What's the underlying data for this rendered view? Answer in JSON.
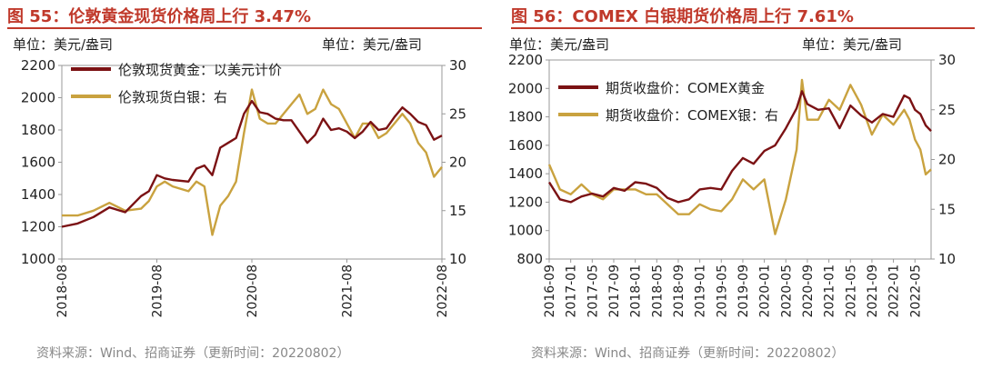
{
  "charts": [
    {
      "title": "图 55：伦敦黄金现货价格周上行 3.47%",
      "unit_left": "单位：美元/盎司",
      "unit_right": "单位：美元/盎司",
      "source": "资料来源：Wind、招商证券（更新时间：20220802）",
      "colors": {
        "gold": "#7b1214",
        "silver": "#c9a23f",
        "accent": "#c0392b"
      }
    },
    {
      "title": "图 56：COMEX 白银期货价格周上行 7.61%",
      "unit_left": "单位：美元/盎司",
      "unit_right": "单位：美元/盎司",
      "source": "资料来源：Wind、招商证券（更新时间：20220802）",
      "colors": {
        "gold": "#7b1214",
        "silver": "#c9a23f",
        "accent": "#c0392b"
      }
    }
  ],
  "chart_data": [
    {
      "type": "line",
      "x_ticks": [
        "2018-08",
        "2019-08",
        "2020-08",
        "2021-08",
        "2022-08"
      ],
      "y_left": {
        "min": 1000,
        "max": 2200,
        "ticks": [
          "1000",
          "1200",
          "1400",
          "1600",
          "1800",
          "2000",
          "2200"
        ]
      },
      "y_right": {
        "min": 10,
        "max": 30,
        "ticks": [
          "10",
          "15",
          "20",
          "25",
          "30"
        ]
      },
      "legend_placement": "top-left",
      "series": [
        {
          "name": "伦敦现货黄金：以美元计价",
          "axis": "left",
          "x": [
            "2018-08",
            "2018-10",
            "2018-12",
            "2019-02",
            "2019-04",
            "2019-06",
            "2019-07",
            "2019-08",
            "2019-09",
            "2019-10",
            "2019-12",
            "2020-01",
            "2020-02",
            "2020-03",
            "2020-04",
            "2020-05",
            "2020-06",
            "2020-07",
            "2020-08",
            "2020-09",
            "2020-10",
            "2020-11",
            "2020-12",
            "2021-01",
            "2021-03",
            "2021-04",
            "2021-05",
            "2021-06",
            "2021-07",
            "2021-08",
            "2021-09",
            "2021-10",
            "2021-11",
            "2021-12",
            "2022-01",
            "2022-02",
            "2022-03",
            "2022-04",
            "2022-05",
            "2022-06",
            "2022-07",
            "2022-08"
          ],
          "values": [
            1200,
            1220,
            1260,
            1320,
            1290,
            1390,
            1420,
            1520,
            1500,
            1490,
            1480,
            1560,
            1580,
            1520,
            1690,
            1720,
            1750,
            1900,
            1980,
            1910,
            1900,
            1870,
            1860,
            1860,
            1720,
            1770,
            1870,
            1800,
            1810,
            1790,
            1750,
            1790,
            1850,
            1800,
            1810,
            1880,
            1940,
            1900,
            1850,
            1830,
            1740,
            1765
          ]
        },
        {
          "name": "伦敦现货白银：右",
          "axis": "right",
          "x": [
            "2018-08",
            "2018-10",
            "2018-12",
            "2019-02",
            "2019-04",
            "2019-06",
            "2019-07",
            "2019-08",
            "2019-09",
            "2019-10",
            "2019-12",
            "2020-01",
            "2020-02",
            "2020-03",
            "2020-04",
            "2020-05",
            "2020-06",
            "2020-07",
            "2020-08",
            "2020-09",
            "2020-10",
            "2020-11",
            "2020-12",
            "2021-01",
            "2021-02",
            "2021-03",
            "2021-04",
            "2021-05",
            "2021-06",
            "2021-07",
            "2021-08",
            "2021-09",
            "2021-10",
            "2021-11",
            "2021-12",
            "2022-01",
            "2022-02",
            "2022-03",
            "2022-04",
            "2022-05",
            "2022-06",
            "2022-07",
            "2022-08"
          ],
          "values": [
            14.5,
            14.5,
            15,
            15.8,
            15,
            15.2,
            16,
            17.5,
            18,
            17.5,
            17,
            18,
            17.5,
            12.5,
            15.5,
            16.5,
            18,
            23,
            27.5,
            24.5,
            24,
            24,
            25,
            26,
            27,
            25,
            25.5,
            27.5,
            26,
            25.5,
            24,
            22.5,
            24,
            24,
            22.5,
            23,
            24,
            25,
            24,
            22,
            21,
            18.5,
            19.5
          ]
        }
      ]
    },
    {
      "type": "line",
      "x_ticks": [
        "2016-09",
        "2017-01",
        "2017-05",
        "2017-09",
        "2018-01",
        "2018-05",
        "2018-09",
        "2019-01",
        "2019-05",
        "2019-09",
        "2020-01",
        "2020-05",
        "2020-09",
        "2021-01",
        "2021-05",
        "2021-09",
        "2022-01",
        "2022-05"
      ],
      "y_left": {
        "min": 800,
        "max": 2200,
        "ticks": [
          "800",
          "1000",
          "1200",
          "1400",
          "1600",
          "1800",
          "2000",
          "2200"
        ]
      },
      "y_right": {
        "min": 10,
        "max": 30,
        "ticks": [
          "10",
          "15",
          "20",
          "25",
          "30"
        ]
      },
      "legend_placement": "top-left",
      "series": [
        {
          "name": "期货收盘价：COMEX黄金",
          "axis": "left",
          "x": [
            "2016-09",
            "2016-11",
            "2017-01",
            "2017-03",
            "2017-05",
            "2017-07",
            "2017-09",
            "2017-11",
            "2018-01",
            "2018-03",
            "2018-05",
            "2018-07",
            "2018-09",
            "2018-11",
            "2019-01",
            "2019-03",
            "2019-05",
            "2019-07",
            "2019-09",
            "2019-11",
            "2020-01",
            "2020-03",
            "2020-05",
            "2020-07",
            "2020-08",
            "2020-09",
            "2020-11",
            "2021-01",
            "2021-03",
            "2021-05",
            "2021-07",
            "2021-09",
            "2021-11",
            "2022-01",
            "2022-03",
            "2022-04",
            "2022-05",
            "2022-06",
            "2022-07",
            "2022-08"
          ],
          "values": [
            1340,
            1220,
            1200,
            1240,
            1260,
            1240,
            1300,
            1280,
            1340,
            1330,
            1300,
            1230,
            1200,
            1220,
            1290,
            1300,
            1290,
            1420,
            1510,
            1470,
            1560,
            1600,
            1720,
            1860,
            1980,
            1890,
            1850,
            1860,
            1720,
            1880,
            1810,
            1760,
            1820,
            1800,
            1950,
            1930,
            1850,
            1820,
            1740,
            1700
          ]
        },
        {
          "name": "期货收盘价：COMEX银：右",
          "axis": "right",
          "x": [
            "2016-09",
            "2016-11",
            "2017-01",
            "2017-03",
            "2017-05",
            "2017-07",
            "2017-09",
            "2017-11",
            "2018-01",
            "2018-03",
            "2018-05",
            "2018-07",
            "2018-09",
            "2018-11",
            "2019-01",
            "2019-03",
            "2019-05",
            "2019-07",
            "2019-09",
            "2019-11",
            "2020-01",
            "2020-03",
            "2020-05",
            "2020-07",
            "2020-08",
            "2020-09",
            "2020-11",
            "2021-01",
            "2021-03",
            "2021-05",
            "2021-07",
            "2021-09",
            "2021-11",
            "2022-01",
            "2022-03",
            "2022-04",
            "2022-05",
            "2022-06",
            "2022-07",
            "2022-08"
          ],
          "values": [
            19.5,
            17,
            16.5,
            17.5,
            16.5,
            16,
            17,
            17,
            17,
            16.5,
            16.5,
            15.5,
            14.5,
            14.5,
            15.5,
            15,
            14.8,
            16,
            18,
            17,
            18,
            12.5,
            16,
            21,
            28,
            24,
            24,
            26,
            25,
            27.5,
            25.5,
            22.5,
            24.5,
            23.5,
            25,
            24,
            22,
            21,
            18.5,
            19
          ]
        }
      ]
    }
  ]
}
